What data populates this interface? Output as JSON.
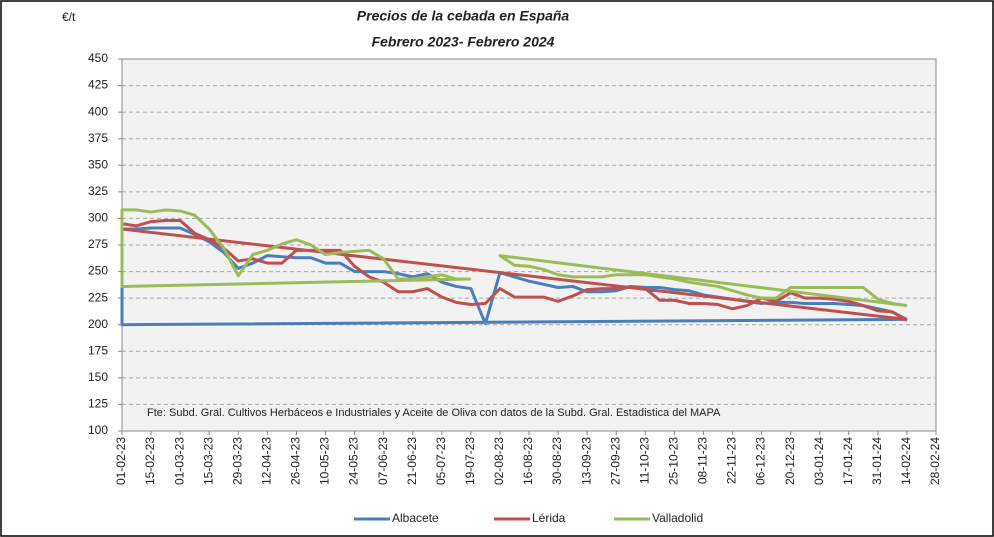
{
  "chart_data": {
    "type": "line",
    "title": "Precios de la cebada en España",
    "subtitle": "Febrero 2023- Febrero 2024",
    "y_label": "€/t",
    "note": "Fte: Subd. Gral. Cultivos Herbáceos e Industriales y Aceite de Oliva con datos de la Subd. Gral. Estadistica del MAPA",
    "xlim": [
      "01-02-23",
      "28-02-24"
    ],
    "xticks": [
      "01-02-23",
      "15-02-23",
      "01-03-23",
      "15-03-23",
      "29-03-23",
      "12-04-23",
      "26-04-23",
      "10-05-23",
      "24-05-23",
      "07-06-23",
      "21-06-23",
      "05-07-23",
      "19-07-23",
      "02-08-23",
      "16-08-23",
      "30-08-23",
      "13-09-23",
      "27-09-23",
      "11-10-23",
      "25-10-23",
      "08-11-23",
      "22-11-23",
      "06-12-23",
      "20-12-23",
      "03-01-24",
      "17-01-24",
      "31-01-24",
      "14-02-24",
      "28-02-24"
    ],
    "ylim": [
      100,
      450
    ],
    "yticks": [
      100,
      125,
      150,
      175,
      200,
      225,
      250,
      275,
      300,
      325,
      350,
      375,
      400,
      425,
      450
    ],
    "grid": true,
    "legend": "bottom",
    "series": [
      {
        "name": "Albacete",
        "color": "#4a7ebb",
        "x": [
          "14-02-24",
          "01-02-23",
          "01-02-23",
          "08-02-23",
          "15-02-23",
          "22-02-23",
          "01-03-23",
          "08-03-23",
          "15-03-23",
          "22-03-23",
          "29-03-23",
          "05-04-23",
          "12-04-23",
          "19-04-23",
          "26-04-23",
          "03-05-23",
          "10-05-23",
          "17-05-23",
          "24-05-23",
          "31-05-23",
          "07-06-23",
          "14-06-23",
          "21-06-23",
          "28-06-23",
          "05-07-23",
          "12-07-23",
          "19-07-23",
          "26-07-23",
          "02-08-23",
          "09-08-23",
          "16-08-23",
          "23-08-23",
          "30-08-23",
          "06-09-23",
          "13-09-23",
          "20-09-23",
          "27-09-23",
          "04-10-23",
          "11-10-23",
          "18-10-23",
          "25-10-23",
          "01-11-23",
          "08-11-23",
          "15-11-23",
          "22-11-23",
          "29-11-23",
          "06-12-23",
          "13-12-23",
          "20-12-23",
          "27-12-23",
          "03-01-24",
          "10-01-24",
          "17-01-24",
          "24-01-24",
          "31-01-24",
          "07-02-24",
          "14-02-24"
        ],
        "values": [
          205,
          200,
          290,
          290,
          291,
          291,
          291,
          285,
          278,
          268,
          253,
          258,
          265,
          264,
          263,
          263,
          258,
          258,
          250,
          250,
          250,
          248,
          245,
          248,
          240,
          236,
          234,
          201,
          249,
          245,
          241,
          238,
          235,
          236,
          231,
          231,
          232,
          236,
          235,
          235,
          233,
          232,
          228,
          226,
          224,
          222,
          220,
          221,
          221,
          220,
          220,
          220,
          219,
          218,
          215,
          212,
          205
        ]
      },
      {
        "name": "Lérida",
        "color": "#c0504d",
        "x": [
          "14-02-24",
          "01-02-23",
          "01-02-23",
          "08-02-23",
          "15-02-23",
          "22-02-23",
          "01-03-23",
          "08-03-23",
          "15-03-23",
          "22-03-23",
          "29-03-23",
          "05-04-23",
          "12-04-23",
          "19-04-23",
          "26-04-23",
          "03-05-23",
          "10-05-23",
          "17-05-23",
          "24-05-23",
          "31-05-23",
          "07-06-23",
          "14-06-23",
          "21-06-23",
          "28-06-23",
          "05-07-23",
          "12-07-23",
          "19-07-23",
          "26-07-23",
          "02-08-23",
          "09-08-23",
          "16-08-23",
          "23-08-23",
          "30-08-23",
          "06-09-23",
          "13-09-23",
          "20-09-23",
          "27-09-23",
          "04-10-23",
          "11-10-23",
          "18-10-23",
          "25-10-23",
          "01-11-23",
          "08-11-23",
          "15-11-23",
          "22-11-23",
          "29-11-23",
          "06-12-23",
          "13-12-23",
          "20-12-23",
          "27-12-23",
          "03-01-24",
          "10-01-24",
          "17-01-24",
          "24-01-24",
          "31-01-24",
          "07-02-24",
          "14-02-24"
        ],
        "values": [
          205,
          290,
          295,
          293,
          297,
          298,
          298,
          286,
          280,
          272,
          260,
          262,
          258,
          258,
          270,
          270,
          270,
          270,
          255,
          245,
          240,
          231,
          231,
          234,
          226,
          221,
          219,
          220,
          234,
          226,
          226,
          226,
          222,
          227,
          233,
          234,
          234,
          236,
          234,
          223,
          223,
          220,
          220,
          219,
          215,
          218,
          225,
          222,
          230,
          225,
          225,
          224,
          222,
          218,
          213,
          212,
          204
        ]
      },
      {
        "name": "Valladolid",
        "color": "#9bbb59",
        "x": [
          "19-07-23",
          "01-02-23",
          "01-02-23",
          "08-02-23",
          "15-02-23",
          "22-02-23",
          "01-03-23",
          "08-03-23",
          "15-03-23",
          "22-03-23",
          "29-03-23",
          "05-04-23",
          "12-04-23",
          "19-04-23",
          "26-04-23",
          "03-05-23",
          "10-05-23",
          "17-05-23",
          "24-05-23",
          "31-05-23",
          "07-06-23",
          "14-06-23",
          "21-06-23",
          "28-06-23",
          "05-07-23",
          "12-07-23",
          "19-07-23",
          null,
          "14-02-24",
          "02-08-23",
          "09-08-23",
          "16-08-23",
          "23-08-23",
          "30-08-23",
          "06-09-23",
          "13-09-23",
          "20-09-23",
          "27-09-23",
          "04-10-23",
          "11-10-23",
          "18-10-23",
          "25-10-23",
          "01-11-23",
          "08-11-23",
          "15-11-23",
          "22-11-23",
          "29-11-23",
          "06-12-23",
          "13-12-23",
          "20-12-23",
          "27-12-23",
          "03-01-24",
          "10-01-24",
          "17-01-24",
          "24-01-24",
          "31-01-24",
          "07-02-24",
          "14-02-24"
        ],
        "values": [
          243,
          236,
          308,
          308,
          306,
          308,
          307,
          303,
          290,
          272,
          246,
          266,
          270,
          276,
          280,
          275,
          266,
          268,
          269,
          270,
          262,
          243,
          243,
          245,
          247,
          243,
          243,
          null,
          218,
          265,
          256,
          255,
          252,
          247,
          245,
          245,
          245,
          247,
          247,
          247,
          245,
          243,
          240,
          238,
          236,
          232,
          228,
          225,
          225,
          235,
          235,
          235,
          235,
          235,
          235,
          224,
          220,
          218
        ]
      }
    ]
  }
}
